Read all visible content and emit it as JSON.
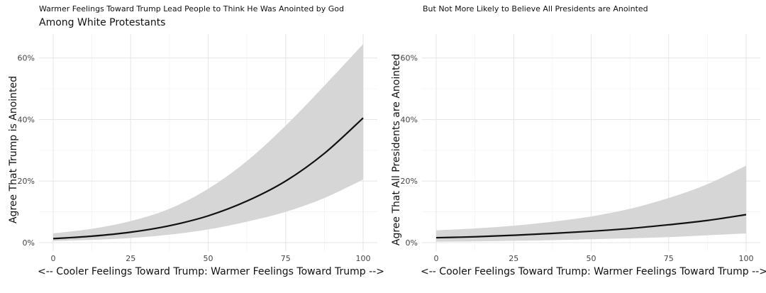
{
  "chart_data": [
    {
      "type": "line",
      "title": "Warmer Feelings Toward Trump Lead People to Think He Was Anointed by God",
      "subtitle": "Among White Protestants",
      "xlabel": "<-- Cooler Feelings Toward Trump: Warmer Feelings Toward Trump -->",
      "ylabel": "Agree That Trump is Anointed",
      "xlim": [
        0,
        100
      ],
      "ylim": [
        0,
        0.65
      ],
      "x_ticks": [
        0,
        25,
        50,
        75,
        100
      ],
      "x_tick_labels": [
        "0",
        "25",
        "50",
        "75",
        "100"
      ],
      "y_ticks": [
        0,
        0.2,
        0.4,
        0.6
      ],
      "y_tick_labels": [
        "0%",
        "20%",
        "40%",
        "60%"
      ],
      "x": [
        0,
        12.5,
        25,
        37.5,
        50,
        62.5,
        75,
        87.5,
        100
      ],
      "estimate": [
        0.013,
        0.021,
        0.034,
        0.055,
        0.087,
        0.135,
        0.2,
        0.29,
        0.405
      ],
      "lower": [
        0.005,
        0.009,
        0.015,
        0.026,
        0.043,
        0.068,
        0.1,
        0.145,
        0.205
      ],
      "upper": [
        0.03,
        0.045,
        0.07,
        0.11,
        0.175,
        0.265,
        0.38,
        0.51,
        0.645
      ]
    },
    {
      "type": "line",
      "title": "But Not More Likely to Believe All Presidents are Anointed",
      "subtitle": "",
      "xlabel": "<-- Cooler Feelings Toward Trump: Warmer Feelings Toward Trump -->",
      "ylabel": "Agree That All Presidents are Anointed",
      "xlim": [
        0,
        100
      ],
      "ylim": [
        0,
        0.65
      ],
      "x_ticks": [
        0,
        25,
        50,
        75,
        100
      ],
      "x_tick_labels": [
        "0",
        "25",
        "50",
        "75",
        "100"
      ],
      "y_ticks": [
        0,
        0.2,
        0.4,
        0.6
      ],
      "y_tick_labels": [
        "0%",
        "20%",
        "40%",
        "60%"
      ],
      "x": [
        0,
        12.5,
        25,
        37.5,
        50,
        62.5,
        75,
        87.5,
        100
      ],
      "estimate": [
        0.016,
        0.019,
        0.024,
        0.03,
        0.037,
        0.046,
        0.058,
        0.072,
        0.091
      ],
      "lower": [
        0.003,
        0.004,
        0.006,
        0.008,
        0.011,
        0.014,
        0.018,
        0.024,
        0.03
      ],
      "upper": [
        0.04,
        0.046,
        0.055,
        0.068,
        0.085,
        0.11,
        0.145,
        0.19,
        0.25
      ]
    }
  ]
}
